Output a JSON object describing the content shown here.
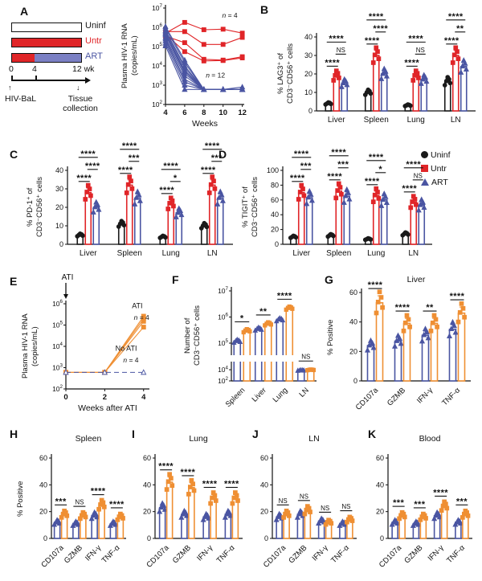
{
  "colors": {
    "uninf": "#1a1a1a",
    "untr": "#e02528",
    "art": "#4a55a2",
    "ati": "#ef8f33",
    "art_bar_segment": "#7b80c4",
    "axis": "#111111"
  },
  "schematic": {
    "groups": [
      {
        "label": "Uninf"
      },
      {
        "label": "Untr"
      },
      {
        "label": "ART"
      }
    ],
    "tick0": "0",
    "tick4": "4",
    "tick12": "12 wk",
    "inoculation": "HIV-BaL",
    "endpoint": "Tissue collection"
  },
  "legend": {
    "items": [
      {
        "label": "Uninf",
        "shape": "circle",
        "color": "#1a1a1a"
      },
      {
        "label": "Untr",
        "shape": "square",
        "color": "#e02528"
      },
      {
        "label": "ART",
        "shape": "triangle",
        "color": "#4a55a2"
      }
    ]
  },
  "chart_data": [
    {
      "panel": "A",
      "type": "line",
      "xlabel": "Weeks",
      "ylabel": "Plasma HIV-1 RNA\n(copies/mL)",
      "x": [
        4,
        6,
        8,
        10,
        12
      ],
      "xlim": [
        4,
        12.2
      ],
      "ylog_range": [
        2,
        7
      ],
      "series": [
        {
          "name": "Untr",
          "color": "#e02528",
          "marker": "square",
          "n_label": "n = 4",
          "lines": [
            [
              500000,
              1800000,
              750000,
              800000,
              500000
            ],
            [
              600000,
              600000,
              130000,
              130000,
              300000
            ],
            [
              350000,
              160000,
              22000,
              20000,
              30000
            ],
            [
              450000,
              55000,
              18000,
              19000,
              26000
            ]
          ]
        },
        {
          "name": "ART",
          "color": "#4a55a2",
          "marker": "triangle",
          "n_label": "n = 12",
          "lines": [
            [
              1100000,
              20000,
              600,
              600,
              600
            ],
            [
              900000,
              15000,
              600,
              600,
              600
            ],
            [
              700000,
              10000,
              600,
              600,
              600
            ],
            [
              600000,
              8000,
              600,
              600,
              600
            ],
            [
              500000,
              6000,
              600,
              600,
              600
            ],
            [
              450000,
              5000,
              600,
              600,
              600
            ],
            [
              400000,
              4000,
              600,
              600,
              600
            ],
            [
              300000,
              3000,
              600,
              600,
              600
            ],
            [
              250000,
              2000,
              600,
              600,
              600
            ],
            [
              200000,
              1500,
              600,
              600,
              600
            ],
            [
              150000,
              1000,
              600,
              600,
              800
            ],
            [
              110000,
              600,
              600,
              600,
              600
            ]
          ]
        }
      ]
    },
    {
      "panel": "B",
      "type": "grouped_bar",
      "ylabel": "% LAG3⁺ of\nCD3⁻CD56⁺ cells",
      "categories": [
        "Liver",
        "Spleen",
        "Lung",
        "LN"
      ],
      "ylim": [
        0,
        40
      ],
      "yticks": [
        0,
        10,
        20,
        30,
        40
      ],
      "series": [
        {
          "name": "Uninf",
          "color": "#1a1a1a",
          "marker": "circle",
          "values": [
            4,
            10,
            3,
            16
          ]
        },
        {
          "name": "Untr",
          "color": "#e02528",
          "marker": "square",
          "values": [
            19,
            30,
            19,
            30
          ]
        },
        {
          "name": "ART",
          "color": "#4a55a2",
          "marker": "triangle",
          "values": [
            15,
            20,
            17,
            24
          ]
        }
      ],
      "sig": [
        {
          "low": "****",
          "mid": "NS",
          "top": "****"
        },
        {
          "low": "****",
          "mid": "****",
          "top": "****"
        },
        {
          "low": "****",
          "mid": "NS",
          "top": "****"
        },
        {
          "low": "****",
          "mid": "**",
          "top": "****"
        }
      ]
    },
    {
      "panel": "C",
      "type": "grouped_bar",
      "ylabel": "% PD-1⁺ of\nCD3⁻CD56⁺ cells",
      "categories": [
        "Liver",
        "Spleen",
        "Lung",
        "LN"
      ],
      "ylim": [
        0,
        40
      ],
      "yticks": [
        0,
        10,
        20,
        30,
        40
      ],
      "series": [
        {
          "name": "Uninf",
          "color": "#1a1a1a",
          "marker": "circle",
          "values": [
            5,
            11,
            4,
            10
          ]
        },
        {
          "name": "Untr",
          "color": "#e02528",
          "marker": "square",
          "values": [
            28,
            32,
            22,
            32
          ]
        },
        {
          "name": "ART",
          "color": "#4a55a2",
          "marker": "triangle",
          "values": [
            20,
            25,
            17,
            25
          ]
        }
      ],
      "sig": [
        {
          "low": "****",
          "mid": "****",
          "top": "****"
        },
        {
          "low": "****",
          "mid": "***",
          "top": "****"
        },
        {
          "low": "****",
          "mid": "*",
          "top": "****"
        },
        {
          "low": "****",
          "mid": "***",
          "top": "****"
        }
      ]
    },
    {
      "panel": "D",
      "type": "grouped_bar",
      "ylabel": "% TIGIT⁺ of\nCD3⁻CD56⁺ cells",
      "categories": [
        "Liver",
        "Spleen",
        "Lung",
        "LN"
      ],
      "ylim": [
        0,
        100
      ],
      "yticks": [
        0,
        20,
        40,
        60,
        80,
        100
      ],
      "series": [
        {
          "name": "Uninf",
          "color": "#1a1a1a",
          "marker": "circle",
          "values": [
            10,
            12,
            7,
            14
          ]
        },
        {
          "name": "Untr",
          "color": "#e02528",
          "marker": "square",
          "values": [
            70,
            72,
            66,
            57
          ]
        },
        {
          "name": "ART",
          "color": "#4a55a2",
          "marker": "triangle",
          "values": [
            63,
            65,
            60,
            53
          ]
        }
      ],
      "sig": [
        {
          "low": "****",
          "mid": "***",
          "top": "****"
        },
        {
          "low": "****",
          "mid": "***",
          "top": "****"
        },
        {
          "low": "****",
          "mid": "*",
          "top": "****"
        },
        {
          "low": "****",
          "mid": "NS",
          "top": "****"
        }
      ]
    },
    {
      "panel": "E",
      "type": "line",
      "xlabel": "Weeks after ATI",
      "ylabel": "Plasma HIV-1 RNA\n(copies/mL)",
      "x": [
        0,
        2,
        4
      ],
      "xlim": [
        0,
        4.3
      ],
      "ylog_range": [
        2,
        6
      ],
      "arrow_label": "ATI",
      "series": [
        {
          "name": "ATI",
          "color": "#ef8f33",
          "marker": "square",
          "n_label": "n = 4",
          "lines": [
            [
              600,
              600,
              260000
            ],
            [
              600,
              600,
              200000
            ],
            [
              600,
              600,
              150000
            ],
            [
              600,
              600,
              80000
            ]
          ]
        },
        {
          "name": "No ATI",
          "color": "#4a55a2",
          "marker": "triangle",
          "open": true,
          "dashed": true,
          "n_label": "n = 4",
          "lines": [
            [
              600,
              600,
              600
            ]
          ]
        }
      ]
    },
    {
      "panel": "F",
      "type": "log_bar",
      "ylabel": "Number of\nCD3⁻CD56⁺ cells",
      "categories": [
        "Spleen",
        "Liver",
        "Lung",
        "LN"
      ],
      "yticks_exp": [
        7,
        6,
        5,
        4,
        2
      ],
      "axis_break": true,
      "series": [
        {
          "name": "No ATI",
          "color": "#4a55a2",
          "marker": "triangle",
          "values": [
            120000,
            350000,
            800000,
            8000
          ]
        },
        {
          "name": "ATI",
          "color": "#ef8f33",
          "marker": "square",
          "values": [
            300000,
            550000,
            2200000,
            9500
          ]
        }
      ],
      "sig": [
        "*",
        "**",
        "****",
        "NS"
      ]
    },
    {
      "panel": "G",
      "type": "grouped_bar",
      "title": "Liver",
      "ylabel": "% Positive",
      "categories": [
        "CD107a",
        "GZMB",
        "IFN-γ",
        "TNF-α"
      ],
      "ylim": [
        0,
        60
      ],
      "yticks": [
        0,
        20,
        40,
        60
      ],
      "series": [
        {
          "name": "No ATI",
          "color": "#4a55a2",
          "marker": "triangle",
          "values": [
            24,
            27,
            31,
            35
          ]
        },
        {
          "name": "ATI",
          "color": "#ef8f33",
          "marker": "square",
          "values": [
            53,
            39,
            39,
            46
          ]
        }
      ],
      "sig": [
        "****",
        "****",
        "**",
        "****"
      ]
    },
    {
      "panel": "H",
      "type": "grouped_bar",
      "title": "Spleen",
      "ylabel": "% Positive",
      "categories": [
        "CD107a",
        "GZMB",
        "IFN-γ",
        "TNF-α"
      ],
      "ylim": [
        0,
        60
      ],
      "yticks": [
        0,
        20,
        40,
        60
      ],
      "series": [
        {
          "name": "No ATI",
          "color": "#4a55a2",
          "marker": "triangle",
          "values": [
            12,
            11,
            17,
            11
          ]
        },
        {
          "name": "ATI",
          "color": "#ef8f33",
          "marker": "square",
          "values": [
            18,
            17,
            25,
            16
          ]
        }
      ],
      "sig": [
        "***",
        "NS",
        "****",
        "****"
      ]
    },
    {
      "panel": "I",
      "type": "grouped_bar",
      "title": "Lung",
      "ylabel": "",
      "categories": [
        "CD107a",
        "GZMB",
        "IFN-γ",
        "TNF-α"
      ],
      "ylim": [
        0,
        60
      ],
      "yticks": [
        0,
        20,
        40,
        60
      ],
      "series": [
        {
          "name": "No ATI",
          "color": "#4a55a2",
          "marker": "triangle",
          "values": [
            23,
            18,
            16,
            18
          ]
        },
        {
          "name": "ATI",
          "color": "#ef8f33",
          "marker": "square",
          "values": [
            42,
            38,
            30,
            30
          ]
        }
      ],
      "sig": [
        "****",
        "****",
        "****",
        "****"
      ]
    },
    {
      "panel": "J",
      "type": "grouped_bar",
      "title": "LN",
      "ylabel": "",
      "categories": [
        "CD107a",
        "GZMB",
        "IFN-γ",
        "TNF-α"
      ],
      "ylim": [
        0,
        60
      ],
      "yticks": [
        0,
        20,
        40,
        60
      ],
      "series": [
        {
          "name": "No ATI",
          "color": "#4a55a2",
          "marker": "triangle",
          "values": [
            16,
            18,
            13,
            11
          ]
        },
        {
          "name": "ATI",
          "color": "#ef8f33",
          "marker": "square",
          "values": [
            18,
            21,
            12,
            14
          ]
        }
      ],
      "sig": [
        "NS",
        "NS",
        "NS",
        "NS"
      ]
    },
    {
      "panel": "K",
      "type": "grouped_bar",
      "title": "Blood",
      "ylabel": "",
      "categories": [
        "CD107a",
        "GZMB",
        "IFN-γ",
        "TNF-α"
      ],
      "ylim": [
        0,
        60
      ],
      "yticks": [
        0,
        20,
        40,
        60
      ],
      "series": [
        {
          "name": "No ATI",
          "color": "#4a55a2",
          "marker": "triangle",
          "values": [
            12,
            11,
            17,
            12
          ]
        },
        {
          "name": "ATI",
          "color": "#ef8f33",
          "marker": "square",
          "values": [
            17,
            16,
            24,
            18
          ]
        }
      ],
      "sig": [
        "***",
        "***",
        "****",
        "***"
      ]
    }
  ]
}
